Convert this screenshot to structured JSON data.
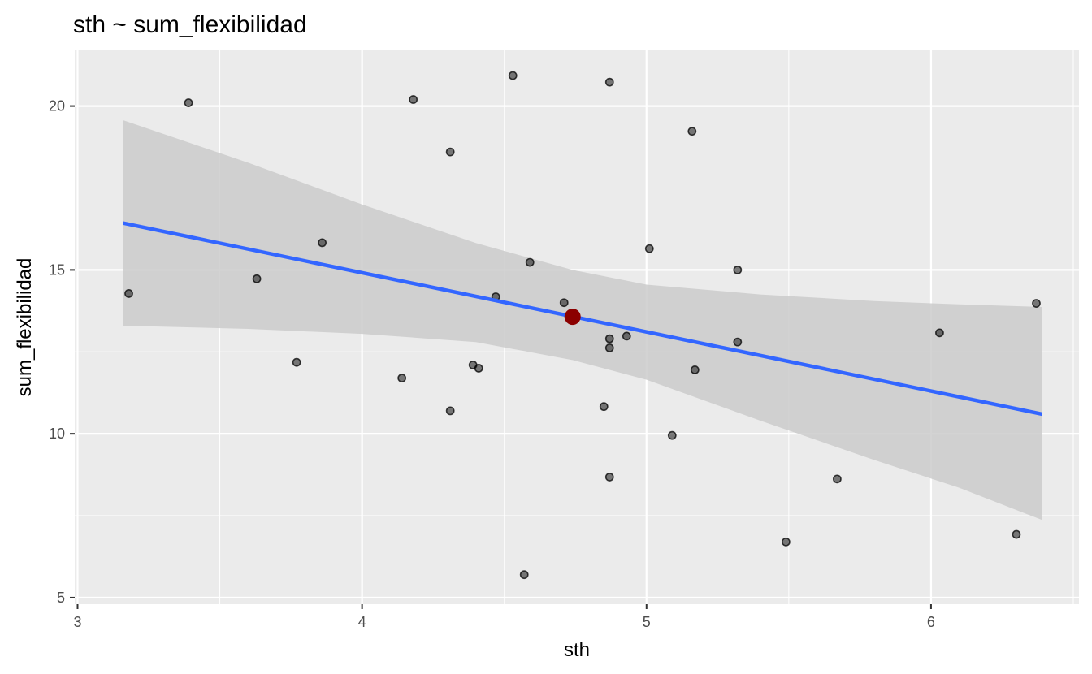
{
  "chart_data": {
    "type": "scatter",
    "title": "sth ~ sum_flexibilidad",
    "xlabel": "sth",
    "ylabel": "sum_flexibilidad",
    "xlim": [
      2.99,
      6.52
    ],
    "ylim": [
      4.8,
      21.7
    ],
    "x_ticks": [
      3,
      4,
      5,
      6
    ],
    "x_tick_labels": [
      "3",
      "4",
      "5",
      "6"
    ],
    "y_ticks": [
      5,
      10,
      15,
      20
    ],
    "y_tick_labels": [
      "5",
      "10",
      "15",
      "20"
    ],
    "grid": true,
    "points": [
      {
        "x": 3.18,
        "y": 14.28
      },
      {
        "x": 3.39,
        "y": 20.1
      },
      {
        "x": 3.63,
        "y": 14.73
      },
      {
        "x": 3.77,
        "y": 12.18
      },
      {
        "x": 3.86,
        "y": 15.83
      },
      {
        "x": 4.14,
        "y": 11.7
      },
      {
        "x": 4.18,
        "y": 20.2
      },
      {
        "x": 4.31,
        "y": 18.6
      },
      {
        "x": 4.31,
        "y": 10.7
      },
      {
        "x": 4.39,
        "y": 12.1
      },
      {
        "x": 4.41,
        "y": 12.0
      },
      {
        "x": 4.47,
        "y": 14.18
      },
      {
        "x": 4.53,
        "y": 20.93
      },
      {
        "x": 4.57,
        "y": 5.7
      },
      {
        "x": 4.59,
        "y": 15.23
      },
      {
        "x": 4.71,
        "y": 14.0
      },
      {
        "x": 4.85,
        "y": 10.83
      },
      {
        "x": 4.87,
        "y": 20.73
      },
      {
        "x": 4.87,
        "y": 12.9
      },
      {
        "x": 4.87,
        "y": 12.62
      },
      {
        "x": 4.87,
        "y": 8.68
      },
      {
        "x": 4.93,
        "y": 12.98
      },
      {
        "x": 5.01,
        "y": 15.65
      },
      {
        "x": 5.09,
        "y": 9.95
      },
      {
        "x": 5.16,
        "y": 19.23
      },
      {
        "x": 5.17,
        "y": 11.95
      },
      {
        "x": 5.32,
        "y": 15.0
      },
      {
        "x": 5.32,
        "y": 12.8
      },
      {
        "x": 5.49,
        "y": 6.7
      },
      {
        "x": 5.67,
        "y": 8.62
      },
      {
        "x": 6.03,
        "y": 13.08
      },
      {
        "x": 6.3,
        "y": 6.93
      },
      {
        "x": 6.37,
        "y": 13.98
      }
    ],
    "highlight_point": {
      "x": 4.74,
      "y": 13.57,
      "color": "#8b0000"
    },
    "regression_line": {
      "x": [
        3.16,
        6.39
      ],
      "y": [
        16.43,
        10.6
      ],
      "color": "#3366ff"
    },
    "confidence_band": {
      "x": [
        3.16,
        3.6,
        4.0,
        4.4,
        4.74,
        5.0,
        5.4,
        5.8,
        6.1,
        6.39
      ],
      "upper": [
        19.57,
        18.27,
        17.0,
        15.82,
        15.0,
        14.55,
        14.25,
        14.05,
        13.95,
        13.87
      ],
      "lower": [
        13.3,
        13.2,
        13.05,
        12.8,
        12.25,
        11.65,
        10.4,
        9.2,
        8.35,
        7.37
      ]
    },
    "colors": {
      "panel_background": "#ebebeb",
      "grid_major": "#ffffff",
      "point_fill": "#000000",
      "band_fill": "#cbcbcb"
    }
  }
}
